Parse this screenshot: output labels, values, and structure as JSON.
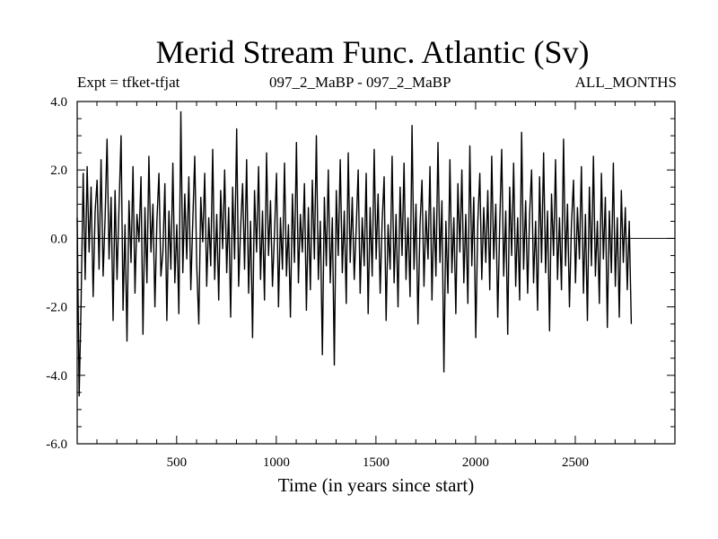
{
  "chart_data": {
    "type": "line",
    "title": "Merid Stream Func. Atlantic (Sv)",
    "subtitle_left": "Expt = tfket-tfjat",
    "subtitle_center": "097_2_MaBP - 097_2_MaBP",
    "subtitle_right": "ALL_MONTHS",
    "xlabel": "Time (in years since start)",
    "ylabel": "",
    "xlim": [
      1,
      3000
    ],
    "ylim": [
      -6.0,
      4.0
    ],
    "x_ticks": [
      500,
      1000,
      1500,
      2000,
      2500
    ],
    "x_tick_labels": [
      "500",
      "1000",
      "1500",
      "2000",
      "2500"
    ],
    "y_ticks": [
      4.0,
      2.0,
      0.0,
      -2.0,
      -4.0,
      -6.0
    ],
    "y_tick_labels": [
      "4.0",
      "2.0",
      "0.0",
      "-2.0",
      "-4.0",
      "-6.0"
    ],
    "zero_line": true,
    "grid": false,
    "line_color": "#000000",
    "series": [
      {
        "x_start": 1,
        "x_step": 10,
        "values": [
          0.6,
          -4.6,
          -1.8,
          1.9,
          -1.2,
          2.1,
          -0.4,
          1.5,
          -1.7,
          0.8,
          1.7,
          -0.9,
          2.3,
          -1.1,
          0.6,
          2.9,
          -0.6,
          1.2,
          -2.4,
          1.4,
          -1.2,
          0.9,
          3.0,
          -2.1,
          0.4,
          -3.0,
          1.1,
          -0.7,
          2.1,
          -1.6,
          0.7,
          -0.1,
          1.8,
          -2.8,
          0.9,
          -1.3,
          2.4,
          -0.4,
          1.0,
          -2.0,
          0.5,
          1.9,
          -1.1,
          -0.4,
          1.6,
          -2.4,
          0.8,
          -0.9,
          2.2,
          -1.3,
          0.4,
          -2.2,
          3.7,
          -1.0,
          1.3,
          -0.6,
          1.8,
          -1.5,
          0.5,
          2.4,
          -0.8,
          -2.5,
          1.2,
          -0.1,
          1.9,
          -1.4,
          0.6,
          -0.8,
          2.6,
          -1.2,
          0.7,
          -1.8,
          1.4,
          -0.3,
          2.0,
          -1.0,
          0.9,
          -2.3,
          1.5,
          -0.6,
          3.2,
          -1.4,
          0.3,
          1.6,
          -0.9,
          2.3,
          -1.6,
          0.5,
          -2.9,
          1.4,
          -0.4,
          2.1,
          -1.2,
          0.8,
          -1.8,
          2.5,
          -0.5,
          1.1,
          -1.4,
          0.2,
          1.9,
          -2.0,
          0.6,
          -0.9,
          2.2,
          -1.1,
          0.4,
          -2.3,
          1.3,
          -0.7,
          2.8,
          -1.3,
          0.7,
          -0.4,
          1.6,
          -2.1,
          0.9,
          -1.5,
          1.7,
          -0.6,
          3.0,
          -1.2,
          0.5,
          -3.4,
          1.2,
          -0.8,
          2.0,
          -1.3,
          0.6,
          -3.7,
          1.4,
          -0.5,
          2.3,
          -1.0,
          0.8,
          -1.9,
          2.5,
          -0.7,
          1.2,
          -1.2,
          0.3,
          2.0,
          -1.6,
          0.6,
          -0.8,
          1.9,
          -2.2,
          0.9,
          -1.1,
          2.6,
          -0.6,
          1.3,
          -1.6,
          0.5,
          1.8,
          -2.4,
          0.4,
          -0.9,
          2.4,
          -1.3,
          0.7,
          -2.0,
          1.5,
          -0.5,
          2.2,
          -1.2,
          0.6,
          -1.7,
          3.3,
          -0.9,
          1.0,
          -2.5,
          0.4,
          1.7,
          -1.4,
          0.8,
          -0.6,
          2.1,
          -1.8,
          0.9,
          -1.1,
          2.8,
          -0.7,
          1.1,
          -3.9,
          0.5,
          -1.6,
          2.3,
          -1.0,
          0.6,
          -2.2,
          1.6,
          -0.4,
          2.0,
          -1.3,
          0.7,
          -1.9,
          2.7,
          -0.8,
          1.2,
          -2.9,
          0.5,
          1.9,
          -1.2,
          0.9,
          -0.7,
          1.4,
          -1.5,
          2.4,
          -0.6,
          1.0,
          -2.3,
          0.4,
          2.6,
          -1.1,
          0.8,
          -2.8,
          1.5,
          -0.5,
          2.2,
          -1.4,
          0.6,
          -1.8,
          3.1,
          -0.9,
          1.1,
          -1.6,
          0.7,
          2.0,
          -1.3,
          0.5,
          -2.1,
          1.8,
          -0.7,
          2.5,
          -1.0,
          0.8,
          -2.7,
          1.3,
          -0.5,
          2.3,
          -1.2,
          0.6,
          -1.5,
          2.9,
          -0.8,
          1.0,
          -2.0,
          0.4,
          1.7,
          -1.3,
          0.9,
          -0.6,
          2.1,
          -1.6,
          0.7,
          -2.4,
          1.5,
          -0.8,
          2.4,
          -1.1,
          0.5,
          -1.9,
          1.9,
          -0.6,
          1.2,
          -2.6,
          0.8,
          -1.0,
          2.2,
          -1.4,
          0.6,
          -2.3,
          1.4,
          -0.7,
          0.9,
          -1.5,
          0.5,
          -2.5
        ]
      }
    ]
  }
}
